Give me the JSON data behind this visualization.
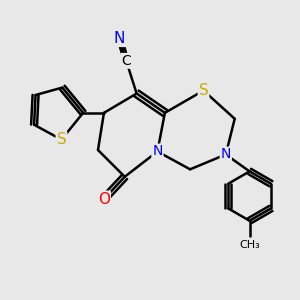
{
  "background_color": "#e8e8e8",
  "atom_colors": {
    "C": "#000000",
    "N": "#0000ff",
    "O": "#ff0000",
    "S": "#ccaa00"
  },
  "bond_color": "#000000",
  "bond_width": 1.8,
  "font_size_atom": 10,
  "figsize": [
    3.0,
    3.0
  ],
  "dpi": 100
}
